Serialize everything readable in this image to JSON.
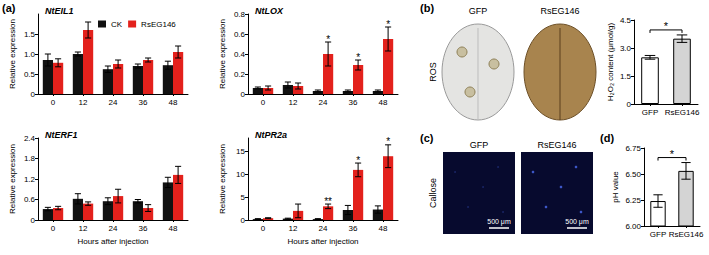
{
  "chart_data": [
    {
      "type": "bar",
      "title": "NtEIL1",
      "ylabel": "Relative expression",
      "categories": [
        "0",
        "12",
        "24",
        "36",
        "48"
      ],
      "series": [
        {
          "name": "CK",
          "color": "#111111",
          "values": [
            0.85,
            1.0,
            0.62,
            0.7,
            0.72
          ],
          "errors": [
            0.15,
            0.05,
            0.08,
            0.05,
            0.1
          ]
        },
        {
          "name": "RsEG146",
          "color": "#e3211c",
          "values": [
            0.78,
            1.6,
            0.75,
            0.85,
            1.05
          ],
          "errors": [
            0.1,
            0.2,
            0.1,
            0.05,
            0.15
          ]
        }
      ],
      "ylim": [
        0,
        2
      ],
      "yticks": [
        0,
        0.5,
        {
          "value": 1,
          "label": "1.0"
        },
        1.5
      ],
      "grid": false,
      "legend": "top"
    },
    {
      "type": "bar",
      "title": "NtLOX",
      "ylabel": "Relative expression",
      "categories": [
        "0",
        "12",
        "24",
        "36",
        "48"
      ],
      "series": [
        {
          "name": "CK",
          "color": "#111111",
          "values": [
            0.06,
            0.09,
            0.03,
            0.03,
            0.03
          ],
          "errors": [
            0.01,
            0.03,
            0.01,
            0.01,
            0.01
          ]
        },
        {
          "name": "RsEG146",
          "color": "#e3211c",
          "values": [
            0.06,
            0.08,
            0.4,
            0.29,
            0.55
          ],
          "errors": [
            0.02,
            0.03,
            0.12,
            0.05,
            0.12
          ]
        }
      ],
      "ylim": [
        0,
        0.8
      ],
      "yticks": [
        0,
        0.2,
        0.4,
        0.6,
        0.8
      ],
      "grid": false,
      "annotations": [
        {
          "category": "24",
          "series": "RsEG146",
          "text": "*"
        },
        {
          "category": "36",
          "series": "RsEG146",
          "text": "*"
        },
        {
          "category": "48",
          "series": "RsEG146",
          "text": "*"
        }
      ]
    },
    {
      "type": "bar",
      "title": "NtERF1",
      "ylabel": "Relative expression",
      "xlabel": "Hours after injection",
      "categories": [
        "0",
        "12",
        "24",
        "36",
        "48"
      ],
      "series": [
        {
          "name": "CK",
          "color": "#111111",
          "values": [
            0.32,
            0.62,
            0.55,
            0.55,
            1.1
          ],
          "errors": [
            0.05,
            0.15,
            0.1,
            0.05,
            0.15
          ]
        },
        {
          "name": "RsEG146",
          "color": "#e3211c",
          "values": [
            0.35,
            0.48,
            0.7,
            0.35,
            1.32
          ],
          "errors": [
            0.05,
            0.05,
            0.2,
            0.1,
            0.25
          ]
        }
      ],
      "ylim": [
        0,
        2.4
      ],
      "yticks": [
        0,
        0.6,
        1.2,
        1.8,
        2.4
      ],
      "grid": false
    },
    {
      "type": "bar",
      "title": "NtPR2a",
      "ylabel": "Relative expression",
      "xlabel": "Hours after injection",
      "categories": [
        "0",
        "12",
        "24",
        "36",
        "48"
      ],
      "series": [
        {
          "name": "CK",
          "color": "#111111",
          "values": [
            0.2,
            0.3,
            0.2,
            2.2,
            2.3
          ],
          "errors": [
            0.1,
            0.1,
            0.1,
            1.0,
            0.8
          ]
        },
        {
          "name": "RsEG146",
          "color": "#e3211c",
          "values": [
            0.4,
            2.0,
            3.0,
            11,
            14
          ],
          "errors": [
            0.1,
            1.5,
            0.5,
            1.5,
            2.5
          ]
        }
      ],
      "ylim": [
        0,
        18
      ],
      "yticks": [
        0,
        5,
        10,
        15
      ],
      "grid": false,
      "annotations": [
        {
          "category": "24",
          "series": "RsEG146",
          "text": "**"
        },
        {
          "category": "36",
          "series": "RsEG146",
          "text": "*"
        },
        {
          "category": "48",
          "series": "RsEG146",
          "text": "*"
        }
      ]
    },
    {
      "type": "bar",
      "ylabel": "H₂O₂ content (μmol/g)",
      "categories": [
        "GFP",
        "RsEG146"
      ],
      "values": [
        2.5,
        3.5
      ],
      "errors": [
        0.1,
        0.2
      ],
      "colors": [
        "#ffffff",
        "#d4d4d4"
      ],
      "ylim": [
        0,
        4.5
      ],
      "yticks": [
        0,
        1.5,
        {
          "value": 3,
          "label": "3.0"
        },
        4.5
      ],
      "grid": false,
      "annotations": [
        {
          "between": [
            "GFP",
            "RsEG146"
          ],
          "text": "*"
        }
      ]
    },
    {
      "type": "bar",
      "ylabel": "pH value",
      "categories": [
        "GFP",
        "RsEG146"
      ],
      "values": [
        6.24,
        6.53
      ],
      "errors": [
        0.06,
        0.08
      ],
      "colors": [
        "#ffffff",
        "#d4d4d4"
      ],
      "ylim": [
        6,
        6.75
      ],
      "yticks": [
        {
          "value": 6,
          "label": "6.00"
        },
        6.25,
        {
          "value": 6.5,
          "label": "6.50"
        },
        6.75
      ],
      "grid": false,
      "annotations": [
        {
          "between": [
            "GFP",
            "RsEG146"
          ],
          "text": "*"
        }
      ]
    }
  ],
  "panel_labels": [
    "(a)",
    "(b)",
    "(c)",
    "(d)"
  ],
  "images": [
    {
      "labels": [
        "GFP",
        "RsEG146"
      ],
      "stain": "ROS"
    },
    {
      "labels": [
        "GFP",
        "RsEG146"
      ],
      "stain": "Callose",
      "scale_bar": "500 μm"
    }
  ]
}
